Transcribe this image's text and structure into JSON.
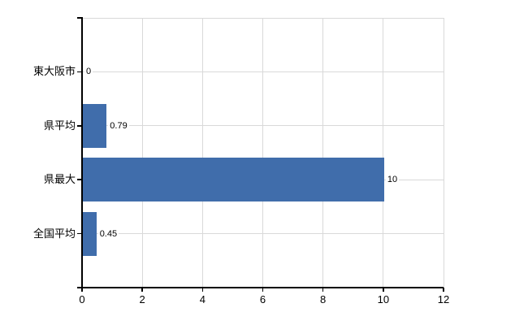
{
  "chart_data": {
    "type": "bar",
    "orientation": "horizontal",
    "title": "",
    "categories": [
      "東大阪市",
      "県平均",
      "県最大",
      "全国平均"
    ],
    "values": [
      0,
      0.79,
      10,
      0.45
    ],
    "value_labels": [
      "0",
      "0.79",
      "10",
      "0.45"
    ],
    "x_ticks": [
      "0",
      "2",
      "4",
      "6",
      "8",
      "10",
      "12"
    ],
    "xlim": [
      0,
      12
    ],
    "grid": true,
    "legend_position": "none",
    "colors": {
      "bar": "#406dab",
      "grid": "#d9d9d9",
      "axis": "#000000",
      "text": "#000000",
      "background": "#ffffff"
    }
  }
}
